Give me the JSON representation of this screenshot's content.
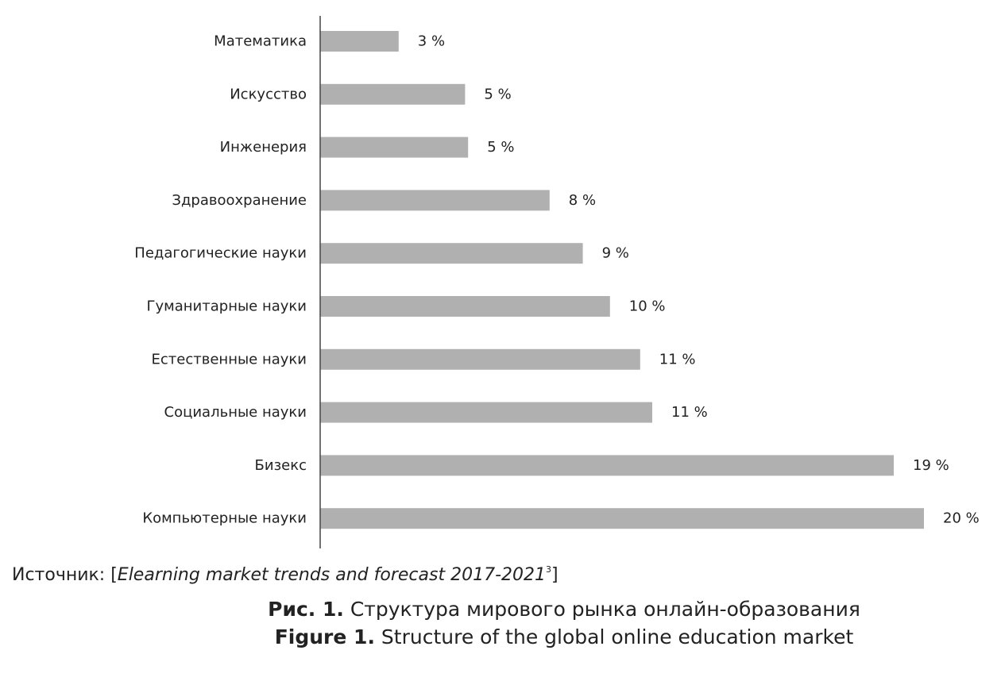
{
  "chart_data": {
    "type": "bar",
    "orientation": "horizontal",
    "categories": [
      "Математика",
      "Искусство",
      "Инженерия",
      "Здравоохранение",
      "Педагогические науки",
      "Гуманитарные науки",
      "Естественные науки",
      "Социальные науки",
      "Бизекс",
      "Компьютерные науки"
    ],
    "values": [
      2.6,
      4.8,
      4.9,
      7.6,
      8.7,
      9.6,
      10.6,
      11.0,
      19.0,
      20.0
    ],
    "data_labels": [
      "3 %",
      "5 %",
      "5 %",
      "8 %",
      "9 %",
      "10 %",
      "11 %",
      "11 %",
      "19 %",
      "20 %"
    ],
    "xlim": [
      0,
      20
    ],
    "grid": false,
    "bar_color": "#b0b0b0",
    "axis_color": "#444444"
  },
  "source": {
    "prefix": "Источник: [",
    "title": "Elearning market trends and forecast 2017-2021",
    "footnote": "3",
    "suffix": "]"
  },
  "caption": {
    "ru_label": "Рис. 1.",
    "ru_text": " Структура мирового рынка онлайн-образования",
    "en_label": "Figure 1.",
    "en_text": " Structure of the global online education market"
  }
}
